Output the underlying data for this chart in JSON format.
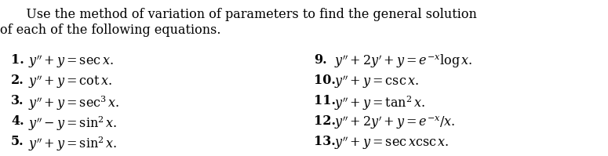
{
  "background_color": "#ffffff",
  "intro_line1": "   Use the method of variation of parameters to find the general solution",
  "intro_line2": "of each of the following equations.",
  "left_items": [
    {
      "num": "1.",
      "eq": "$y'' + y = \\sec x.$"
    },
    {
      "num": "2.",
      "eq": "$y'' + y = \\cot x.$"
    },
    {
      "num": "3.",
      "eq": "$y'' + y = \\sec^3 x.$"
    },
    {
      "num": "4.",
      "eq": "$y'' - y = \\sin^2 x.$"
    },
    {
      "num": "5.",
      "eq": "$y'' + y = \\sin^2 x.$"
    }
  ],
  "right_items": [
    {
      "num": "9.",
      "eq": "$y'' + 2y' + y = e^{-x} \\log x.$"
    },
    {
      "num": "10.",
      "eq": "$y'' + y = \\csc x.$"
    },
    {
      "num": "11.",
      "eq": "$y'' + y = \\tan^2 x.$"
    },
    {
      "num": "12.",
      "eq": "$y'' + 2y' + y = e^{-x}/x.$"
    },
    {
      "num": "13.",
      "eq": "$y'' + y = \\sec x \\csc x.$"
    }
  ],
  "font_size_intro": 11.5,
  "font_size_items": 11.5,
  "text_color": "#000000",
  "figwidth": 7.75,
  "figheight": 1.99,
  "dpi": 100
}
